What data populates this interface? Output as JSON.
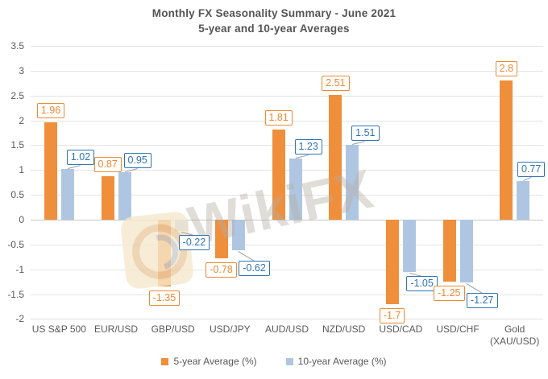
{
  "watermark": {
    "text": "WikiFX"
  },
  "chart_data": {
    "type": "bar",
    "title": "Monthly FX Seasonality Summary - June 2021",
    "subtitle": "5-year and 10-year Averages",
    "categories": [
      "US S&P 500",
      "EUR/USD",
      "GBP/USD",
      "USD/JPY",
      "AUD/USD",
      "NZD/USD",
      "USD/CAD",
      "USD/CHF",
      "Gold (XAU/USD)"
    ],
    "series": [
      {
        "name": "5-year Average (%)",
        "color": "#EF8E3B",
        "label_color": "#ED8A33",
        "values": [
          1.96,
          0.87,
          -1.35,
          -0.78,
          1.81,
          2.51,
          -1.7,
          -1.25,
          2.8
        ]
      },
      {
        "name": "10-year Average (%)",
        "color": "#AFC6E2",
        "label_color": "#2E74B6",
        "values": [
          1.02,
          0.95,
          -0.22,
          -0.62,
          1.23,
          1.51,
          -1.05,
          -1.27,
          0.77
        ]
      }
    ],
    "y_ticks": [
      "3.5",
      "3",
      "2.5",
      "2",
      "1.5",
      "1",
      "0.5",
      "0",
      "-0.5",
      "-1",
      "-1.5",
      "-2"
    ],
    "ylim": [
      -2,
      3.5
    ],
    "grid": true,
    "legend_position": "bottom"
  }
}
